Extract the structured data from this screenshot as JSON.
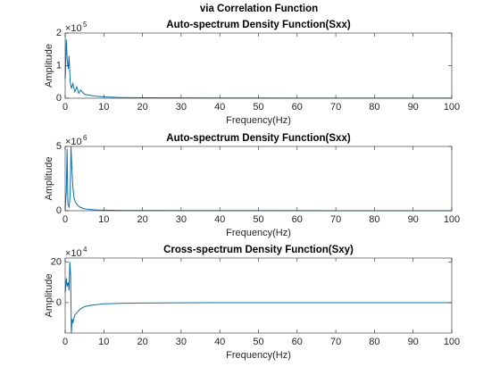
{
  "title": "via Correlation Function",
  "chart_data": [
    {
      "type": "line",
      "title": "Auto-spectrum Density Function(Sxx)",
      "xlabel": "Frequency(Hz)",
      "ylabel": "Amplitude",
      "y_multiplier": {
        "base": "×10",
        "exponent": "5"
      },
      "color": "#0072bd",
      "x": [
        0,
        0.3,
        0.5,
        0.8,
        1,
        1.3,
        1.6,
        2,
        2.5,
        3,
        3.5,
        4,
        5,
        6,
        7,
        8,
        10,
        12,
        15,
        20,
        30,
        40,
        50,
        60,
        70,
        80,
        90,
        100
      ],
      "values": [
        0.6,
        1.8,
        1.2,
        0.9,
        1.3,
        0.5,
        0.3,
        0.45,
        0.2,
        0.35,
        0.15,
        0.25,
        0.12,
        0.1,
        0.08,
        0.06,
        0.04,
        0.03,
        0.02,
        0.015,
        0.01,
        0.008,
        0.006,
        0.005,
        0.004,
        0.004,
        0.003,
        0.003
      ],
      "xlim": [
        0,
        100
      ],
      "xticks": [
        0,
        10,
        20,
        30,
        40,
        50,
        60,
        70,
        80,
        90,
        100
      ],
      "ylim": [
        0,
        2
      ],
      "yticks": [
        0,
        1,
        2
      ]
    },
    {
      "type": "line",
      "title": "Auto-spectrum Density Function(Sxx)",
      "xlabel": "Frequency(Hz)",
      "ylabel": "Amplitude",
      "y_multiplier": {
        "base": "×10",
        "exponent": "6"
      },
      "color": "#0072bd",
      "x": [
        0,
        0.3,
        0.5,
        0.7,
        1,
        1.3,
        1.5,
        1.7,
        2,
        2.3,
        2.6,
        3,
        3.5,
        4,
        5,
        6,
        8,
        10,
        15,
        20,
        30,
        40,
        50,
        60,
        70,
        80,
        90,
        100
      ],
      "values": [
        0.2,
        1.5,
        4.8,
        0.5,
        0.3,
        1.2,
        5,
        3.5,
        1.8,
        1.0,
        0.7,
        0.5,
        0.35,
        0.25,
        0.15,
        0.1,
        0.06,
        0.04,
        0.02,
        0.015,
        0.01,
        0.008,
        0.006,
        0.005,
        0.004,
        0.004,
        0.003,
        0.003
      ],
      "xlim": [
        0,
        100
      ],
      "xticks": [
        0,
        10,
        20,
        30,
        40,
        50,
        60,
        70,
        80,
        90,
        100
      ],
      "ylim": [
        0,
        5
      ],
      "yticks": [
        0,
        5
      ]
    },
    {
      "type": "line",
      "title": "Cross-spectrum Density Function(Sxy)",
      "xlabel": "Frequency(Hz)",
      "ylabel": "Amplitude",
      "y_multiplier": {
        "base": "×10",
        "exponent": "4"
      },
      "color": "#0072bd",
      "x": [
        0,
        0.3,
        0.5,
        0.8,
        1,
        1.2,
        1.4,
        1.6,
        1.8,
        2,
        2.5,
        3,
        3.5,
        4,
        5,
        6,
        8,
        10,
        15,
        20,
        30,
        40,
        50,
        60,
        70,
        80,
        90,
        100
      ],
      "values": [
        5,
        12,
        8,
        10,
        6,
        20,
        14,
        -15,
        -8,
        -10,
        -6,
        -5,
        -4,
        -3,
        -2,
        -1.5,
        -1,
        -0.6,
        -0.3,
        -0.2,
        -0.1,
        0,
        0,
        0,
        0,
        0,
        0,
        0
      ],
      "xlim": [
        0,
        100
      ],
      "xticks": [
        0,
        10,
        20,
        30,
        40,
        50,
        60,
        70,
        80,
        90,
        100
      ],
      "ylim": [
        -15,
        22
      ],
      "yticks": [
        0,
        20
      ]
    }
  ]
}
